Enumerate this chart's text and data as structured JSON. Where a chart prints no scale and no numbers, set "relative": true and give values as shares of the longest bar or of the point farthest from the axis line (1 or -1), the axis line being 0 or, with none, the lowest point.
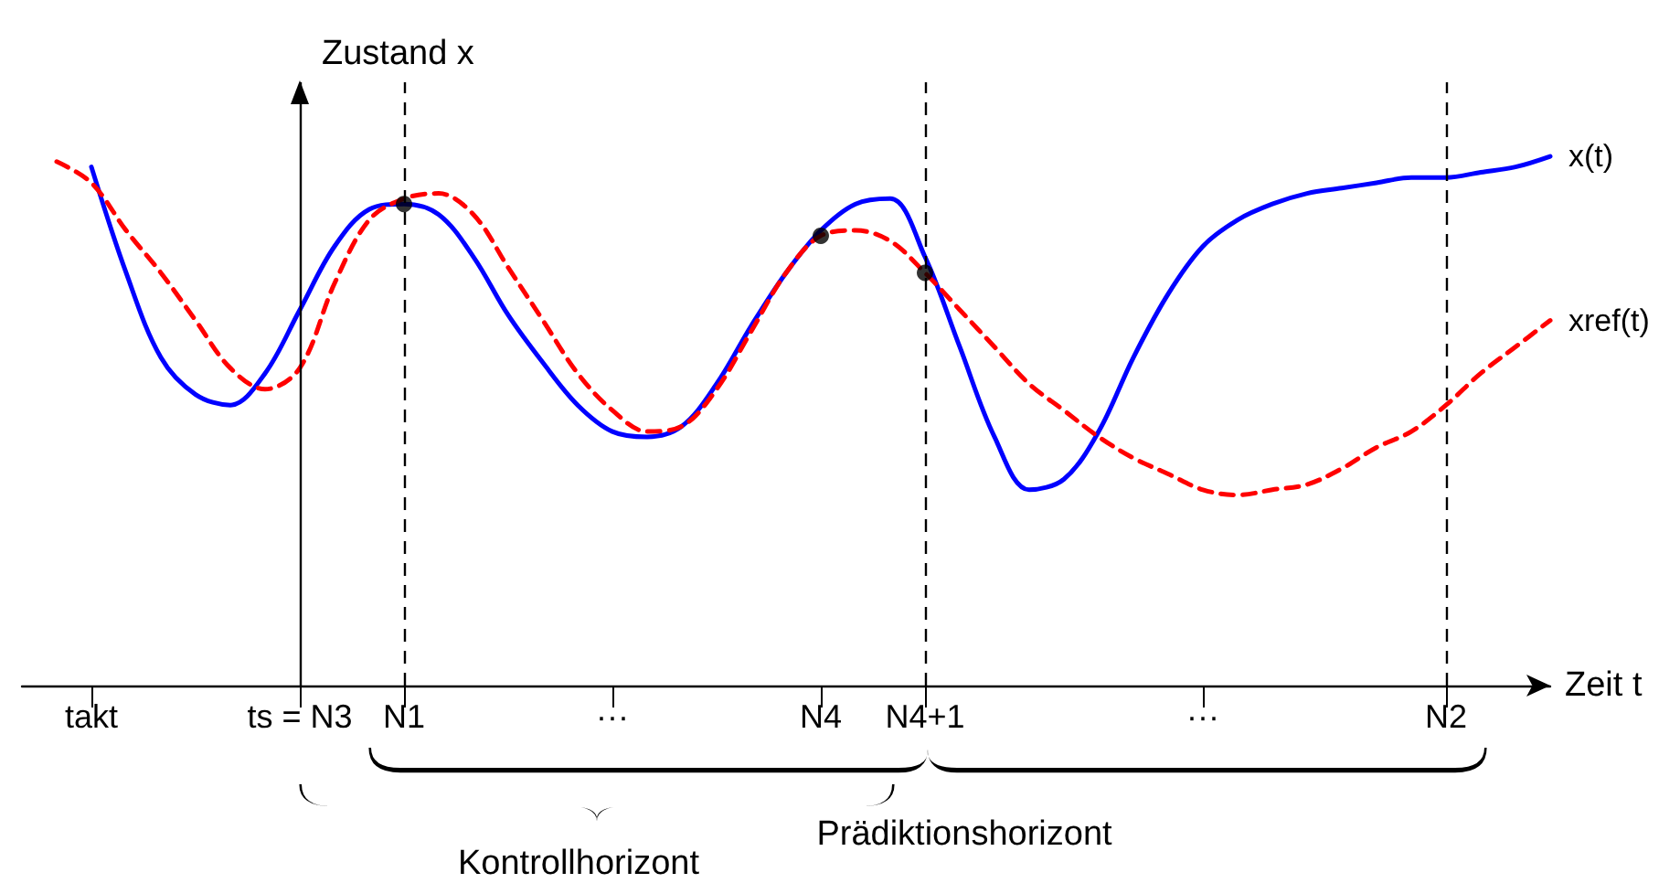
{
  "chart_data": {
    "type": "line",
    "relative": true,
    "ylabel": "Zustand x",
    "xlabel": "Zeit t",
    "categories": [
      null,
      null,
      "takt",
      null,
      null,
      null,
      null,
      null,
      "ts = N3",
      null,
      null,
      "N1",
      null,
      null,
      null,
      null,
      null,
      "···",
      null,
      null,
      null,
      null,
      null,
      "N4",
      null,
      null,
      "N4+1",
      null,
      null,
      null,
      null,
      null,
      null,
      null,
      "···",
      null,
      null,
      null,
      null,
      null,
      null,
      "N2",
      null,
      null,
      null
    ],
    "series": [
      {
        "name": "x(t)",
        "color": "#0000ff",
        "line_style": "solid",
        "values": [
          null,
          null,
          0.98,
          0.78,
          0.62,
          0.55,
          0.53,
          0.59,
          0.71,
          0.83,
          0.9,
          0.91,
          0.89,
          0.81,
          0.7,
          0.61,
          0.53,
          0.48,
          0.47,
          0.49,
          0.57,
          0.68,
          0.78,
          0.86,
          0.91,
          0.92,
          0.81,
          0.64,
          0.47,
          0.37,
          0.39,
          0.48,
          0.62,
          0.74,
          0.83,
          0.88,
          0.91,
          0.93,
          0.94,
          0.95,
          0.96,
          0.96,
          0.97,
          0.98,
          1
        ]
      },
      {
        "name": "xref(t)",
        "color": "#ff0000",
        "line_style": "dashed",
        "values": [
          null,
          0.99,
          0.95,
          0.86,
          0.78,
          0.69,
          0.6,
          0.56,
          0.6,
          0.76,
          0.88,
          0.92,
          0.93,
          0.89,
          0.79,
          0.69,
          0.59,
          0.52,
          0.48,
          0.49,
          0.56,
          0.67,
          0.78,
          0.85,
          0.86,
          0.84,
          0.78,
          0.71,
          0.64,
          0.57,
          0.52,
          0.47,
          0.43,
          0.4,
          0.37,
          0.36,
          0.37,
          0.38,
          0.41,
          0.45,
          0.48,
          0.53,
          0.59,
          0.64,
          0.69
        ]
      },
      {
        "type": "scatter",
        "color": "#000000",
        "marker": "circle",
        "x": [
          "N1",
          "N4",
          "N4+1"
        ],
        "values": [
          0.91,
          0.85,
          0.78
        ]
      }
    ],
    "ref_lines": [
      {
        "axis": "x",
        "value": "ts = N3",
        "color": "#000000",
        "line_style": "solid"
      },
      {
        "axis": "x",
        "value": "N1",
        "color": "#000000",
        "line_style": "dashed"
      },
      {
        "axis": "x",
        "value": "N4+1",
        "color": "#000000",
        "line_style": "dashed"
      },
      {
        "axis": "x",
        "value": "N2",
        "color": "#000000",
        "line_style": "dashed"
      }
    ],
    "annotations": [
      "Kontrollhorizont",
      "Prädiktionshorizont"
    ],
    "grid": false,
    "legend": false
  }
}
